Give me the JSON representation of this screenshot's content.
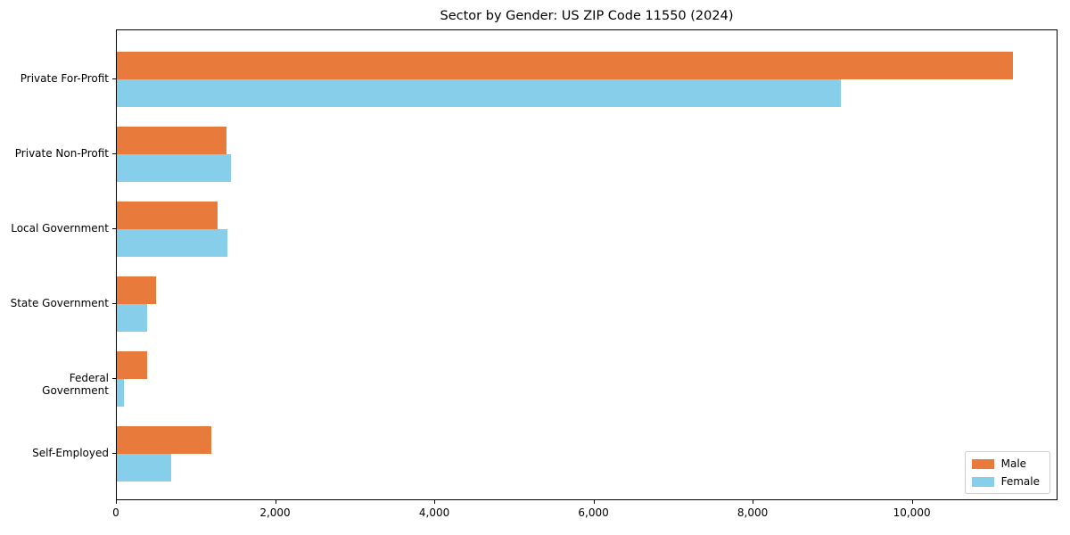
{
  "chart_data": {
    "type": "bar",
    "orientation": "horizontal",
    "title": "Sector by Gender: US ZIP Code 11550 (2024)",
    "categories": [
      "Private For-Profit",
      "Private Non-Profit",
      "Local Government",
      "State Government",
      "Federal Government",
      "Self-Employed"
    ],
    "series": [
      {
        "name": "Male",
        "color": "#E87A3C",
        "values": [
          11260,
          1380,
          1260,
          495,
          380,
          1190
        ]
      },
      {
        "name": "Female",
        "color": "#87CEEB",
        "values": [
          9100,
          1430,
          1390,
          375,
          85,
          685
        ]
      }
    ],
    "xlabel": "",
    "ylabel": "",
    "xlim": [
      0,
      11830
    ],
    "xticks": {
      "values": [
        0,
        2000,
        4000,
        6000,
        8000,
        10000
      ],
      "labels": [
        "0",
        "2,000",
        "4,000",
        "6,000",
        "8,000",
        "10,000"
      ]
    },
    "grid": false,
    "legend": {
      "position": "lower right",
      "entries": [
        "Male",
        "Female"
      ]
    },
    "colors": {
      "axis": "#000000",
      "legend_border": "#cccccc",
      "background": "#ffffff"
    }
  }
}
